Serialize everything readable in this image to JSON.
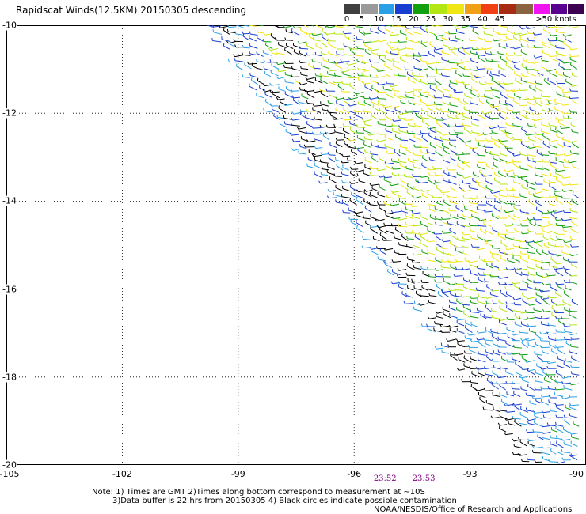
{
  "title": "Rapidscat Winds(12.5KM) 20150305 descending",
  "legend": {
    "colors": [
      "#404040",
      "#9a9a9a",
      "#2aa0e6",
      "#1a3fd0",
      "#12a010",
      "#b4e614",
      "#f0e614",
      "#f0a014",
      "#f04014",
      "#a82c14",
      "#8a6440",
      "#f014f0",
      "#5a0090",
      "#3c0050"
    ],
    "labels": [
      "0",
      "5",
      "10",
      "15",
      "20",
      "25",
      "30",
      "35",
      "40",
      "45",
      ">50 knots"
    ],
    "label_positions": [
      0,
      2,
      4,
      6,
      8,
      10,
      12,
      14,
      16,
      18,
      21
    ]
  },
  "axes": {
    "lon_min": -105,
    "lon_max": -90,
    "lat_max": -10,
    "lat_min": -20,
    "lat_labels": [
      "-10",
      "-12",
      "-14",
      "-16",
      "-18",
      "-20"
    ],
    "lat_values": [
      -10,
      -12,
      -14,
      -16,
      -18,
      -20
    ],
    "lon_labels": [
      "-105",
      "-102",
      "-99",
      "-96",
      "-93",
      "-90"
    ],
    "lon_values": [
      -105,
      -102,
      -99,
      -96,
      -93,
      -90
    ]
  },
  "times": [
    {
      "label": "23:52",
      "lon": -95.2
    },
    {
      "label": "23:53",
      "lon": -94.2
    }
  ],
  "notes": {
    "line1": "Note: 1) Times are GMT 2)Times along bottom correspond to measurement at ~10S",
    "line2": "3)Data buffer is 22 hrs from 20150305 4) Black circles indicate possible contamination",
    "line3": "NOAA/NESDIS/Office of Research and Applications"
  }
}
